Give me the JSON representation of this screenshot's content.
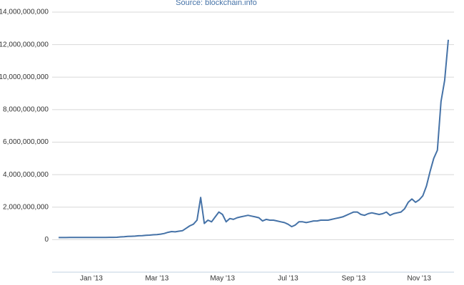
{
  "chart_data": {
    "type": "line",
    "subtitle": "Source: blockchain.info",
    "color": "#4572a7",
    "grid": true,
    "ylim": [
      -2000000000,
      14000000000
    ],
    "yticks": [
      {
        "value": 0,
        "label": "0"
      },
      {
        "value": 2000000000,
        "label": "2,000,000,000"
      },
      {
        "value": 4000000000,
        "label": "4,000,000,000"
      },
      {
        "value": 6000000000,
        "label": "6,000,000,000"
      },
      {
        "value": 8000000000,
        "label": "8,000,000,000"
      },
      {
        "value": 10000000000,
        "label": "10,000,000,000"
      },
      {
        "value": 12000000000,
        "label": "12,000,000,000"
      },
      {
        "value": 14000000000,
        "label": "14,000,000,000"
      }
    ],
    "categories": [
      null,
      null,
      null,
      null,
      null,
      null,
      null,
      null,
      null,
      "Jan '13",
      null,
      null,
      null,
      null,
      null,
      null,
      null,
      null,
      null,
      null,
      null,
      null,
      null,
      null,
      null,
      null,
      null,
      "Mar '13",
      null,
      null,
      null,
      null,
      null,
      null,
      null,
      null,
      null,
      null,
      null,
      null,
      null,
      null,
      null,
      null,
      null,
      "May '13",
      null,
      null,
      null,
      null,
      null,
      null,
      null,
      null,
      null,
      null,
      null,
      null,
      null,
      null,
      null,
      null,
      null,
      "Jul '13",
      null,
      null,
      null,
      null,
      null,
      null,
      null,
      null,
      null,
      null,
      null,
      null,
      null,
      null,
      null,
      null,
      null,
      "Sep '13",
      null,
      null,
      null,
      null,
      null,
      null,
      null,
      null,
      null,
      null,
      null,
      null,
      null,
      null,
      null,
      null,
      null,
      "Nov '13",
      null,
      null,
      null,
      null,
      null,
      null,
      null,
      null
    ],
    "values": [
      130000000,
      130000000,
      130000000,
      135000000,
      135000000,
      135000000,
      135000000,
      135000000,
      135000000,
      135000000,
      135000000,
      135000000,
      138000000,
      140000000,
      142000000,
      145000000,
      150000000,
      170000000,
      180000000,
      200000000,
      210000000,
      220000000,
      240000000,
      250000000,
      270000000,
      280000000,
      300000000,
      310000000,
      340000000,
      380000000,
      450000000,
      500000000,
      480000000,
      520000000,
      550000000,
      700000000,
      850000000,
      950000000,
      1200000000,
      2600000000,
      1000000000,
      1200000000,
      1100000000,
      1400000000,
      1700000000,
      1550000000,
      1100000000,
      1300000000,
      1250000000,
      1350000000,
      1400000000,
      1450000000,
      1500000000,
      1450000000,
      1400000000,
      1350000000,
      1150000000,
      1250000000,
      1200000000,
      1200000000,
      1150000000,
      1100000000,
      1050000000,
      950000000,
      800000000,
      900000000,
      1100000000,
      1100000000,
      1050000000,
      1100000000,
      1150000000,
      1150000000,
      1200000000,
      1200000000,
      1200000000,
      1250000000,
      1300000000,
      1350000000,
      1400000000,
      1500000000,
      1600000000,
      1700000000,
      1700000000,
      1550000000,
      1500000000,
      1600000000,
      1650000000,
      1600000000,
      1550000000,
      1600000000,
      1700000000,
      1500000000,
      1600000000,
      1650000000,
      1700000000,
      1900000000,
      2300000000,
      2500000000,
      2300000000,
      2450000000,
      2700000000,
      3300000000,
      4200000000,
      5000000000,
      5500000000,
      8500000000,
      9800000000,
      12300000000
    ]
  }
}
